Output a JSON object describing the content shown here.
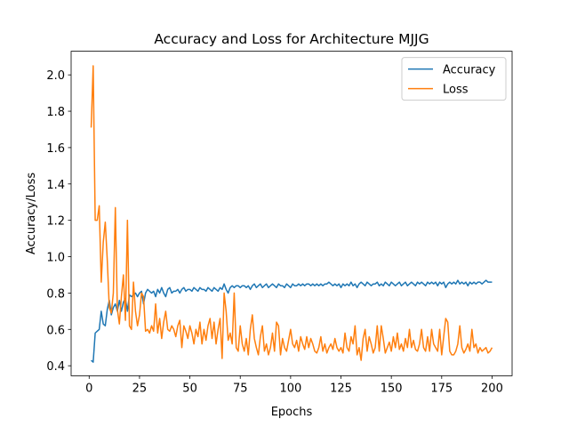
{
  "chart_data": {
    "type": "line",
    "title": "Accuracy and Loss for Architecture MJJG",
    "x_label": "Epochs",
    "y_label": "Accuracy/Loss",
    "x": [
      1,
      2,
      3,
      4,
      5,
      6,
      7,
      8,
      9,
      10,
      11,
      12,
      13,
      14,
      15,
      16,
      17,
      18,
      19,
      20,
      21,
      22,
      23,
      24,
      25,
      26,
      27,
      28,
      29,
      30,
      31,
      32,
      33,
      34,
      35,
      36,
      37,
      38,
      39,
      40,
      41,
      42,
      43,
      44,
      45,
      46,
      47,
      48,
      49,
      50,
      51,
      52,
      53,
      54,
      55,
      56,
      57,
      58,
      59,
      60,
      61,
      62,
      63,
      64,
      65,
      66,
      67,
      68,
      69,
      70,
      71,
      72,
      73,
      74,
      75,
      76,
      77,
      78,
      79,
      80,
      81,
      82,
      83,
      84,
      85,
      86,
      87,
      88,
      89,
      90,
      91,
      92,
      93,
      94,
      95,
      96,
      97,
      98,
      99,
      100,
      101,
      102,
      103,
      104,
      105,
      106,
      107,
      108,
      109,
      110,
      111,
      112,
      113,
      114,
      115,
      116,
      117,
      118,
      119,
      120,
      121,
      122,
      123,
      124,
      125,
      126,
      127,
      128,
      129,
      130,
      131,
      132,
      133,
      134,
      135,
      136,
      137,
      138,
      139,
      140,
      141,
      142,
      143,
      144,
      145,
      146,
      147,
      148,
      149,
      150,
      151,
      152,
      153,
      154,
      155,
      156,
      157,
      158,
      159,
      160,
      161,
      162,
      163,
      164,
      165,
      166,
      167,
      168,
      169,
      170,
      171,
      172,
      173,
      174,
      175,
      176,
      177,
      178,
      179,
      180,
      181,
      182,
      183,
      184,
      185,
      186,
      187,
      188,
      189,
      190,
      191,
      192,
      193,
      194,
      195,
      196,
      197,
      198,
      199,
      200
    ],
    "series": [
      {
        "name": "Accuracy",
        "color": "#1f77b4",
        "values": [
          0.43,
          0.42,
          0.58,
          0.59,
          0.6,
          0.7,
          0.63,
          0.62,
          0.71,
          0.76,
          0.68,
          0.72,
          0.74,
          0.7,
          0.76,
          0.7,
          0.75,
          0.77,
          0.7,
          0.79,
          0.78,
          0.79,
          0.8,
          0.78,
          0.8,
          0.81,
          0.74,
          0.8,
          0.82,
          0.81,
          0.8,
          0.81,
          0.78,
          0.82,
          0.8,
          0.83,
          0.8,
          0.78,
          0.82,
          0.83,
          0.8,
          0.81,
          0.81,
          0.82,
          0.8,
          0.82,
          0.83,
          0.81,
          0.82,
          0.82,
          0.81,
          0.83,
          0.82,
          0.81,
          0.83,
          0.82,
          0.82,
          0.81,
          0.83,
          0.82,
          0.81,
          0.83,
          0.82,
          0.81,
          0.83,
          0.82,
          0.85,
          0.82,
          0.8,
          0.83,
          0.84,
          0.83,
          0.84,
          0.84,
          0.83,
          0.84,
          0.84,
          0.83,
          0.84,
          0.82,
          0.84,
          0.85,
          0.83,
          0.84,
          0.85,
          0.83,
          0.84,
          0.85,
          0.83,
          0.84,
          0.85,
          0.84,
          0.83,
          0.85,
          0.84,
          0.84,
          0.83,
          0.85,
          0.84,
          0.83,
          0.85,
          0.84,
          0.84,
          0.85,
          0.84,
          0.85,
          0.84,
          0.85,
          0.85,
          0.84,
          0.85,
          0.84,
          0.85,
          0.84,
          0.85,
          0.84,
          0.85,
          0.85,
          0.86,
          0.85,
          0.84,
          0.85,
          0.84,
          0.85,
          0.83,
          0.85,
          0.84,
          0.85,
          0.84,
          0.86,
          0.84,
          0.85,
          0.83,
          0.85,
          0.86,
          0.85,
          0.84,
          0.86,
          0.85,
          0.84,
          0.85,
          0.85,
          0.86,
          0.84,
          0.85,
          0.84,
          0.86,
          0.85,
          0.84,
          0.86,
          0.85,
          0.84,
          0.85,
          0.86,
          0.84,
          0.85,
          0.86,
          0.84,
          0.85,
          0.86,
          0.85,
          0.84,
          0.86,
          0.85,
          0.86,
          0.85,
          0.84,
          0.86,
          0.85,
          0.86,
          0.85,
          0.86,
          0.84,
          0.86,
          0.85,
          0.86,
          0.83,
          0.85,
          0.86,
          0.85,
          0.86,
          0.85,
          0.87,
          0.85,
          0.86,
          0.85,
          0.86,
          0.84,
          0.86,
          0.85,
          0.86,
          0.85,
          0.86,
          0.86,
          0.85,
          0.86,
          0.87,
          0.86,
          0.86,
          0.86
        ]
      },
      {
        "name": "Loss",
        "color": "#ff7f0e",
        "values": [
          1.71,
          2.05,
          1.2,
          1.2,
          1.28,
          0.86,
          1.08,
          1.19,
          0.98,
          0.72,
          0.69,
          0.8,
          1.27,
          0.71,
          0.63,
          0.78,
          0.9,
          0.65,
          1.2,
          0.62,
          0.6,
          0.86,
          0.7,
          0.62,
          0.68,
          0.8,
          0.78,
          0.59,
          0.6,
          0.58,
          0.62,
          0.59,
          0.74,
          0.58,
          0.66,
          0.55,
          0.64,
          0.7,
          0.6,
          0.59,
          0.62,
          0.6,
          0.56,
          0.62,
          0.65,
          0.5,
          0.62,
          0.59,
          0.55,
          0.62,
          0.58,
          0.52,
          0.6,
          0.56,
          0.64,
          0.52,
          0.6,
          0.54,
          0.62,
          0.66,
          0.55,
          0.64,
          0.52,
          0.6,
          0.66,
          0.44,
          0.8,
          0.7,
          0.54,
          0.58,
          0.52,
          0.8,
          0.5,
          0.48,
          0.62,
          0.52,
          0.48,
          0.55,
          0.46,
          0.6,
          0.68,
          0.55,
          0.5,
          0.46,
          0.56,
          0.62,
          0.48,
          0.52,
          0.46,
          0.5,
          0.58,
          0.48,
          0.64,
          0.62,
          0.46,
          0.55,
          0.5,
          0.48,
          0.54,
          0.6,
          0.52,
          0.5,
          0.54,
          0.48,
          0.56,
          0.52,
          0.49,
          0.56,
          0.5,
          0.55,
          0.52,
          0.48,
          0.47,
          0.5,
          0.56,
          0.48,
          0.52,
          0.47,
          0.5,
          0.52,
          0.49,
          0.55,
          0.5,
          0.48,
          0.5,
          0.47,
          0.58,
          0.5,
          0.48,
          0.56,
          0.52,
          0.62,
          0.46,
          0.5,
          0.43,
          0.55,
          0.6,
          0.48,
          0.56,
          0.52,
          0.47,
          0.5,
          0.62,
          0.48,
          0.62,
          0.55,
          0.47,
          0.5,
          0.53,
          0.48,
          0.56,
          0.5,
          0.58,
          0.49,
          0.52,
          0.48,
          0.55,
          0.5,
          0.6,
          0.5,
          0.54,
          0.49,
          0.48,
          0.52,
          0.6,
          0.5,
          0.48,
          0.56,
          0.48,
          0.6,
          0.52,
          0.5,
          0.48,
          0.6,
          0.46,
          0.56,
          0.66,
          0.64,
          0.48,
          0.46,
          0.46,
          0.48,
          0.52,
          0.62,
          0.5,
          0.47,
          0.49,
          0.52,
          0.48,
          0.6,
          0.5,
          0.52,
          0.47,
          0.5,
          0.48,
          0.49,
          0.5,
          0.47,
          0.48,
          0.5
        ]
      }
    ],
    "xlim": [
      -8.95,
      209.95
    ],
    "xticks": [
      0,
      25,
      50,
      75,
      100,
      125,
      150,
      175,
      200
    ],
    "ylim": [
      0.345,
      2.13
    ],
    "yticks": [
      0.4,
      0.6,
      0.8,
      {
        "value": 1,
        "label": "1.0"
      },
      1.2,
      1.4,
      1.6,
      1.8,
      {
        "value": 2,
        "label": "2.0"
      }
    ],
    "legend": "upper right"
  }
}
